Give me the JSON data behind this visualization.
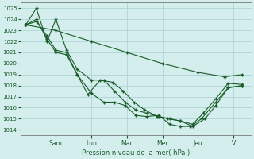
{
  "xlabel": "Pression niveau de la mer( hPa )",
  "bg_color": "#d4eeee",
  "grid_color": "#aed4d4",
  "line_color": "#1a5c28",
  "ylim": [
    1013.5,
    1025.5
  ],
  "yticks": [
    1014,
    1015,
    1016,
    1017,
    1018,
    1019,
    1020,
    1021,
    1022,
    1023,
    1024,
    1025
  ],
  "day_labels": [
    "Sam",
    "Lun",
    "Mar",
    "Mer",
    "Jeu",
    "V"
  ],
  "day_positions": [
    2.0,
    4.0,
    6.0,
    8.0,
    10.0,
    12.0
  ],
  "xlim": [
    0.0,
    13.0
  ],
  "series": [
    {
      "x": [
        0.3,
        2.0,
        4.0,
        6.0,
        8.0,
        10.0,
        11.5,
        12.5
      ],
      "y": [
        1023.5,
        1023.0,
        1022.0,
        1021.0,
        1020.0,
        1019.2,
        1018.8,
        1019.0
      ]
    },
    {
      "x": [
        0.3,
        0.9,
        1.5,
        2.0,
        2.6,
        3.2,
        3.8,
        4.5,
        5.2,
        5.8,
        6.4,
        7.0,
        7.7,
        8.3,
        9.0,
        9.7,
        10.4,
        11.0,
        11.7,
        12.5
      ],
      "y": [
        1023.5,
        1024.0,
        1022.2,
        1021.0,
        1020.8,
        1019.0,
        1017.2,
        1018.5,
        1018.3,
        1017.5,
        1016.5,
        1015.8,
        1015.2,
        1015.0,
        1014.8,
        1014.3,
        1015.0,
        1016.2,
        1017.8,
        1018.0
      ]
    },
    {
      "x": [
        0.3,
        0.9,
        1.5,
        2.0,
        2.6,
        3.2,
        4.0,
        4.7,
        5.3,
        5.9,
        6.5,
        7.1,
        7.8,
        8.4,
        9.0,
        9.7,
        10.3,
        11.0,
        11.7,
        12.5
      ],
      "y": [
        1023.5,
        1025.0,
        1022.0,
        1024.0,
        1021.2,
        1019.5,
        1018.5,
        1018.5,
        1017.5,
        1016.5,
        1015.8,
        1015.5,
        1015.2,
        1015.0,
        1014.8,
        1014.5,
        1015.5,
        1016.8,
        1018.2,
        1018.1
      ]
    },
    {
      "x": [
        0.3,
        0.9,
        1.5,
        2.0,
        2.6,
        3.2,
        4.0,
        4.7,
        5.3,
        5.9,
        6.5,
        7.1,
        7.8,
        8.4,
        9.0,
        9.6,
        10.2,
        11.0,
        11.7,
        12.5
      ],
      "y": [
        1023.5,
        1023.8,
        1022.5,
        1021.2,
        1021.0,
        1019.0,
        1017.3,
        1016.5,
        1016.5,
        1016.2,
        1015.3,
        1015.2,
        1015.3,
        1014.5,
        1014.3,
        1014.3,
        1015.0,
        1016.5,
        1017.8,
        1018.0
      ]
    }
  ]
}
